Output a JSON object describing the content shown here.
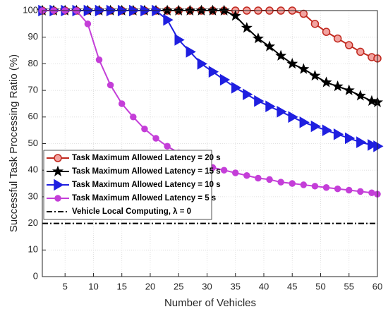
{
  "chart_data": {
    "type": "line",
    "xlabel": "Number of Vehicles",
    "ylabel": "Successful Task Processing Ratio (%)",
    "x": [
      1,
      3,
      5,
      7,
      9,
      11,
      13,
      15,
      17,
      19,
      21,
      23,
      25,
      27,
      29,
      31,
      33,
      35,
      37,
      39,
      41,
      43,
      45,
      47,
      49,
      51,
      53,
      55,
      57,
      59,
      60
    ],
    "xlim": [
      1,
      60
    ],
    "xticks": [
      5,
      10,
      15,
      20,
      25,
      30,
      35,
      40,
      45,
      50,
      55,
      60
    ],
    "ylim": [
      0,
      100
    ],
    "yticks": [
      0,
      10,
      20,
      30,
      40,
      50,
      60,
      70,
      80,
      90,
      100
    ],
    "grid": true,
    "legend": "center left",
    "series": [
      {
        "name": "Task Maximum Allowed Latency = 20 s",
        "color": "#c0281e",
        "face": "#f2a3a0",
        "marker": "circle",
        "values": [
          100,
          100,
          100,
          100,
          100,
          100,
          100,
          100,
          100,
          100,
          100,
          100,
          100,
          100,
          100,
          100,
          100,
          100,
          100,
          100,
          100,
          100,
          100,
          98.8,
          95,
          92,
          89.5,
          87,
          84.5,
          82.5,
          82
        ]
      },
      {
        "name": "Task Maximum Allowed Latency = 15 s",
        "color": "#000000",
        "face": "#000000",
        "marker": "star",
        "values": [
          100,
          100,
          100,
          100,
          100,
          100,
          100,
          100,
          100,
          100,
          100,
          100,
          100,
          100,
          100,
          100,
          100,
          98,
          93.5,
          89.5,
          86.5,
          83,
          80,
          78,
          75.5,
          73,
          71.5,
          70,
          68,
          66,
          65.5
        ]
      },
      {
        "name": "Task Maximum Allowed Latency = 10 s",
        "color": "#1f1fe0",
        "face": "#1f1fe0",
        "marker": "triangle",
        "values": [
          100,
          100,
          100,
          100,
          100,
          100,
          100,
          100,
          100,
          100,
          100,
          96.5,
          89,
          84.5,
          80,
          77,
          74,
          71,
          68.5,
          66,
          64,
          62,
          60,
          58,
          56.5,
          55,
          53.5,
          52,
          50.5,
          49.5,
          49
        ]
      },
      {
        "name": "Task Maximum Allowed Latency = 5 s",
        "color": "#c43ed8",
        "face": "#c43ed8",
        "marker": "dot",
        "values": [
          100,
          100,
          100,
          100,
          95,
          81.5,
          72,
          65,
          60,
          55.5,
          52,
          49,
          46.5,
          44.5,
          42.5,
          41,
          40,
          39,
          38,
          37,
          36.5,
          35.5,
          35,
          34.5,
          34,
          33.5,
          33,
          32.5,
          32,
          31.5,
          31
        ]
      },
      {
        "name": "Vehicle Local Computing, λ = 0",
        "color": "#000000",
        "dash": "dashdot",
        "values": [
          20,
          20,
          20,
          20,
          20,
          20,
          20,
          20,
          20,
          20,
          20,
          20,
          20,
          20,
          20,
          20,
          20,
          20,
          20,
          20,
          20,
          20,
          20,
          20,
          20,
          20,
          20,
          20,
          20,
          20,
          20
        ]
      }
    ]
  }
}
